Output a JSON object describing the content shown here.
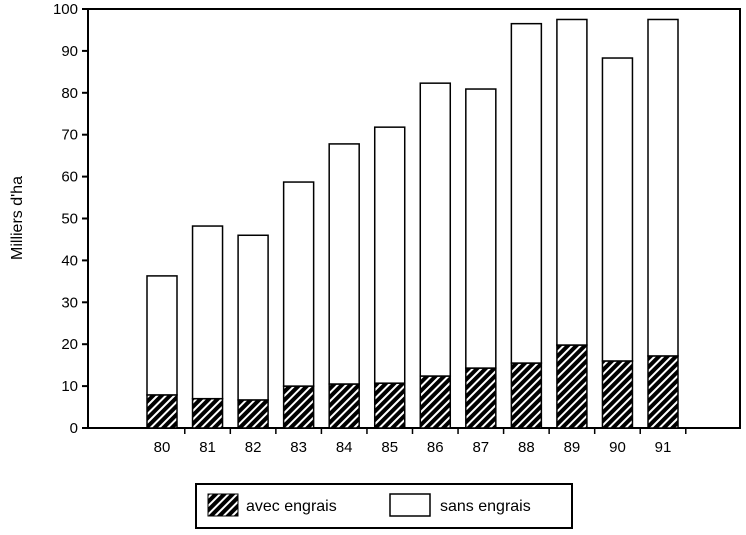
{
  "chart_data": {
    "type": "bar",
    "stacked": true,
    "ylabel": "Milliers d'ha",
    "ylim": [
      0,
      100
    ],
    "yticks": [
      "0",
      "10",
      "20",
      "30",
      "40",
      "50",
      "60",
      "70",
      "80",
      "90",
      "100"
    ],
    "categories": [
      "80",
      "81",
      "82",
      "83",
      "84",
      "85",
      "86",
      "87",
      "88",
      "89",
      "90",
      "91"
    ],
    "series": [
      {
        "name": "avec engrais",
        "fill": "hatched",
        "values": [
          7.9,
          7,
          6.7,
          10,
          10.5,
          10.7,
          12.4,
          14.3,
          15.5,
          19.8,
          16,
          17.2
        ]
      },
      {
        "name": "sans engrais",
        "fill": "white",
        "values": [
          28.4,
          41.2,
          39.3,
          48.7,
          57.3,
          61.1,
          69.9,
          66.6,
          81,
          77.7,
          72.3,
          80.3
        ]
      }
    ],
    "legend": "bottom",
    "grid": false
  }
}
